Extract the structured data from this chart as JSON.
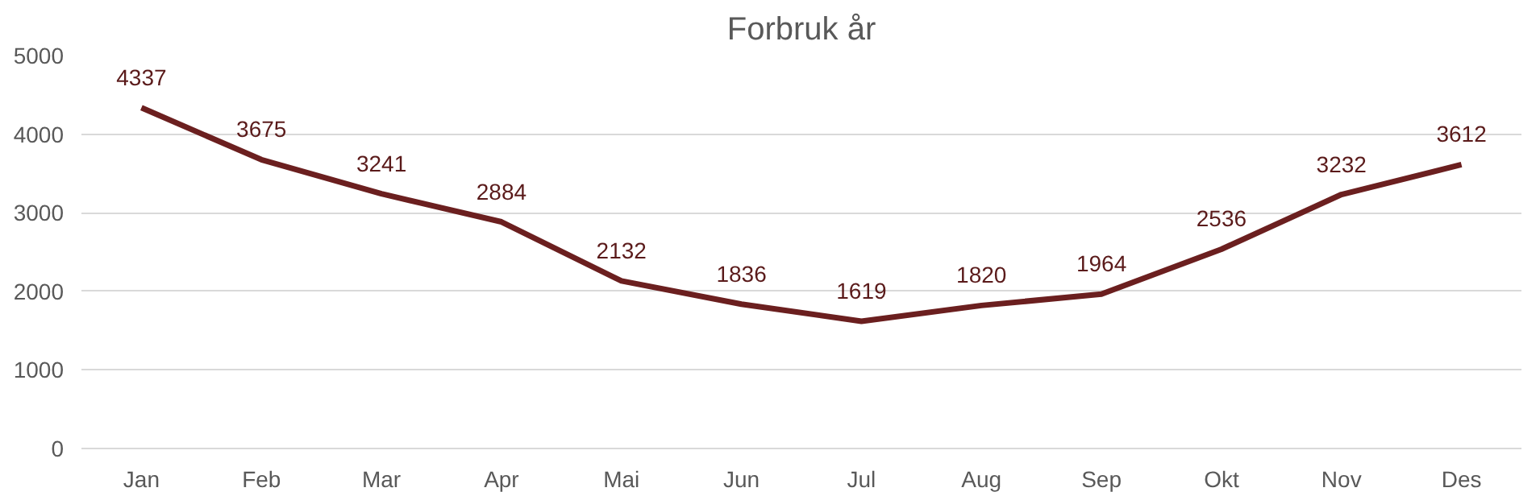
{
  "chart_data": {
    "type": "line",
    "title": "Forbruk år",
    "categories": [
      "Jan",
      "Feb",
      "Mar",
      "Apr",
      "Mai",
      "Jun",
      "Jul",
      "Aug",
      "Sep",
      "Okt",
      "Nov",
      "Des"
    ],
    "series": [
      {
        "color": "#6b1f1f",
        "values": [
          4337,
          3675,
          3241,
          2884,
          2132,
          1836,
          1619,
          1820,
          1964,
          2536,
          3232,
          3612
        ]
      }
    ],
    "ylim": [
      0,
      5000
    ],
    "yticks": [
      0,
      1000,
      2000,
      3000,
      4000,
      5000
    ],
    "grid": "y",
    "data_labels": true,
    "marker": "none",
    "line_style": "solid"
  }
}
